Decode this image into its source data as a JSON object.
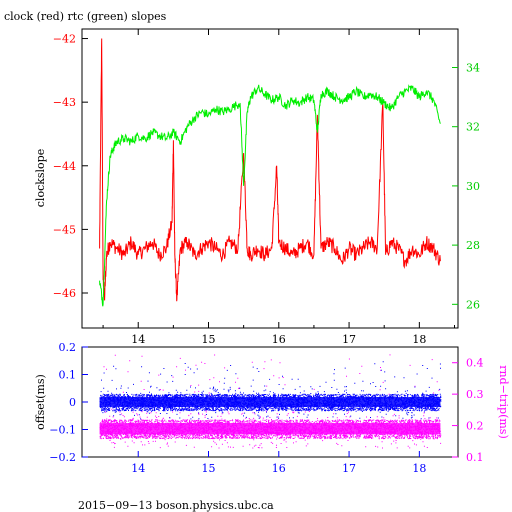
{
  "chart_data": [
    {
      "type": "line",
      "title": "clock (red) rtc (green) slopes",
      "xlabel": "",
      "ylabel_left": "clockslope",
      "ylabel_right": "",
      "xlim": [
        13.2,
        18.55
      ],
      "x_ticks": [
        14,
        15,
        16,
        17,
        18
      ],
      "x_tick_labels": [
        "14",
        "15",
        "16",
        "17",
        "18"
      ],
      "ylim_left": [
        -46.55,
        -41.85
      ],
      "y_ticks_left": [
        -46,
        -45,
        -44,
        -43,
        -42
      ],
      "y_tick_labels_left": [
        "−46",
        "−45",
        "−44",
        "−43",
        "−42"
      ],
      "ylim_right": [
        25.2,
        35.3
      ],
      "y_ticks_right": [
        26,
        28,
        30,
        32,
        34
      ],
      "y_tick_labels_right": [
        "26",
        "28",
        "30",
        "32",
        "34"
      ],
      "grid": false,
      "series": [
        {
          "axis": "left",
          "color": "#ff0000",
          "x": [
            13.45,
            13.48,
            13.5,
            13.52,
            13.55,
            13.6,
            13.7,
            13.8,
            13.9,
            14.0,
            14.1,
            14.2,
            14.3,
            14.4,
            14.48,
            14.5,
            14.52,
            14.55,
            14.6,
            14.7,
            14.8,
            14.9,
            15.0,
            15.1,
            15.2,
            15.3,
            15.42,
            15.5,
            15.55,
            15.6,
            15.7,
            15.8,
            15.9,
            15.97,
            16.0,
            16.1,
            16.2,
            16.3,
            16.4,
            16.5,
            16.55,
            16.6,
            16.7,
            16.8,
            16.9,
            17.0,
            17.1,
            17.2,
            17.3,
            17.4,
            17.48,
            17.52,
            17.6,
            17.7,
            17.8,
            17.9,
            18.0,
            18.1,
            18.2,
            18.3
          ],
          "y": [
            -45.3,
            -42.0,
            -45.8,
            -46.1,
            -45.4,
            -45.2,
            -45.3,
            -45.4,
            -45.2,
            -45.4,
            -45.3,
            -45.2,
            -45.4,
            -45.3,
            -44.9,
            -43.6,
            -45.4,
            -46.1,
            -45.3,
            -45.2,
            -45.4,
            -45.3,
            -45.2,
            -45.3,
            -45.4,
            -45.2,
            -45.3,
            -43.8,
            -45.3,
            -45.4,
            -45.3,
            -45.4,
            -45.3,
            -44.0,
            -45.2,
            -45.3,
            -45.4,
            -45.3,
            -45.2,
            -45.4,
            -43.2,
            -45.3,
            -45.2,
            -45.3,
            -45.5,
            -45.3,
            -45.4,
            -45.3,
            -45.2,
            -45.3,
            -43.0,
            -45.4,
            -45.2,
            -45.3,
            -45.5,
            -45.3,
            -45.4,
            -45.2,
            -45.3,
            -45.5
          ]
        },
        {
          "axis": "right",
          "color": "#00ee00",
          "x": [
            13.45,
            13.5,
            13.55,
            13.6,
            13.65,
            13.7,
            13.8,
            13.9,
            14.0,
            14.1,
            14.2,
            14.3,
            14.4,
            14.5,
            14.6,
            14.7,
            14.8,
            14.9,
            15.0,
            15.1,
            15.2,
            15.3,
            15.45,
            15.5,
            15.55,
            15.6,
            15.7,
            15.8,
            15.9,
            16.0,
            16.1,
            16.2,
            16.3,
            16.4,
            16.5,
            16.55,
            16.6,
            16.7,
            16.8,
            16.9,
            17.0,
            17.1,
            17.2,
            17.3,
            17.4,
            17.5,
            17.6,
            17.7,
            17.8,
            17.9,
            18.0,
            18.1,
            18.2,
            18.3
          ],
          "y": [
            26.8,
            26.0,
            29.5,
            31.0,
            31.3,
            31.5,
            31.6,
            31.5,
            31.7,
            31.6,
            31.8,
            31.7,
            31.6,
            31.8,
            31.5,
            32.0,
            32.3,
            32.5,
            32.4,
            32.6,
            32.5,
            32.6,
            32.8,
            30.0,
            32.5,
            33.0,
            33.3,
            33.1,
            32.9,
            33.0,
            32.7,
            32.9,
            32.8,
            33.0,
            32.9,
            31.8,
            33.1,
            33.2,
            33.0,
            32.9,
            33.0,
            33.2,
            33.0,
            33.1,
            33.0,
            32.8,
            32.6,
            33.0,
            33.2,
            33.3,
            33.0,
            33.2,
            32.9,
            32.1
          ]
        }
      ]
    },
    {
      "type": "scatter",
      "title": "",
      "xlabel": "",
      "ylabel_left": "offset(ms)",
      "ylabel_right": "rnd−trip(ms)",
      "xlim": [
        13.2,
        18.55
      ],
      "x_ticks": [
        14,
        15,
        16,
        17,
        18
      ],
      "x_tick_labels": [
        "14",
        "15",
        "16",
        "17",
        "18"
      ],
      "ylim_left": [
        -0.2,
        0.2
      ],
      "y_ticks_left": [
        -0.2,
        -0.1,
        0,
        0.1,
        0.2
      ],
      "y_tick_labels_left": [
        "−0.2",
        "−0.1",
        "0",
        "0.1",
        "0.2"
      ],
      "ylim_right": [
        0.1,
        0.45
      ],
      "y_ticks_right": [
        0.1,
        0.2,
        0.3,
        0.4
      ],
      "y_tick_labels_right": [
        "0.1",
        "0.2",
        "0.3",
        "0.4"
      ],
      "grid": false,
      "x_range": [
        13.45,
        18.3
      ],
      "series": [
        {
          "axis": "left",
          "color": "#0000ff",
          "band_center": 0.0,
          "band_halfwidth": 0.03,
          "outlier_max": 0.15,
          "outlier_min": -0.15
        },
        {
          "axis": "right",
          "color": "#ff00ff",
          "band_center": 0.19,
          "band_halfwidth": 0.03,
          "outlier_max": 0.43
        }
      ]
    }
  ],
  "footer": "2015−09−13 boson.physics.ubc.ca"
}
